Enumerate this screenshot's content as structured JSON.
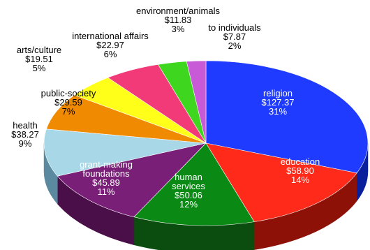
{
  "chart_data": {
    "type": "pie",
    "title": "",
    "slices": [
      {
        "name": "religion",
        "value": 127.37,
        "value_label": "$127.37",
        "percent_label": "31%",
        "color": "#1f3bff",
        "side": "#0a1f9c",
        "text_color": "#ffffff"
      },
      {
        "name": "education",
        "value": 58.9,
        "value_label": "$58.90",
        "percent_label": "14%",
        "color": "#ff2a1a",
        "side": "#8e1108",
        "text_color": "#ffffff"
      },
      {
        "name": "human services",
        "value": 50.06,
        "value_label": "$50.06",
        "percent_label": "12%",
        "color": "#0a8a14",
        "side": "#0a4d0e",
        "text_color": "#ffffff"
      },
      {
        "name": "grant-making foundations",
        "value": 45.89,
        "value_label": "$45.89",
        "percent_label": "11%",
        "color": "#7a1f78",
        "side": "#4a0f48",
        "text_color": "#ffffff"
      },
      {
        "name": "health",
        "value": 38.27,
        "value_label": "$38.27",
        "percent_label": "9%",
        "color": "#a8d8e8",
        "side": "#5b8aa0",
        "text_color": "#000000"
      },
      {
        "name": "public-society",
        "value": 29.59,
        "value_label": "$29.59",
        "percent_label": "7%",
        "color": "#f08a00",
        "side": "#9a5800",
        "text_color": "#000000"
      },
      {
        "name": "arts/culture",
        "value": 19.51,
        "value_label": "$19.51",
        "percent_label": "5%",
        "color": "#ffff1a",
        "side": "#a3a300",
        "text_color": "#000000"
      },
      {
        "name": "international affairs",
        "value": 22.97,
        "value_label": "$22.97",
        "percent_label": "6%",
        "color": "#f23a78",
        "side": "#9a1c4a",
        "text_color": "#000000"
      },
      {
        "name": "environment/animals",
        "value": 11.83,
        "value_label": "$11.83",
        "percent_label": "3%",
        "color": "#3ed61e",
        "side": "#1f7a10",
        "text_color": "#000000"
      },
      {
        "name": "to individuals",
        "value": 7.87,
        "value_label": "$7.87",
        "percent_label": "2%",
        "color": "#c85ad8",
        "side": "#7a2a88",
        "text_color": "#000000"
      }
    ]
  }
}
